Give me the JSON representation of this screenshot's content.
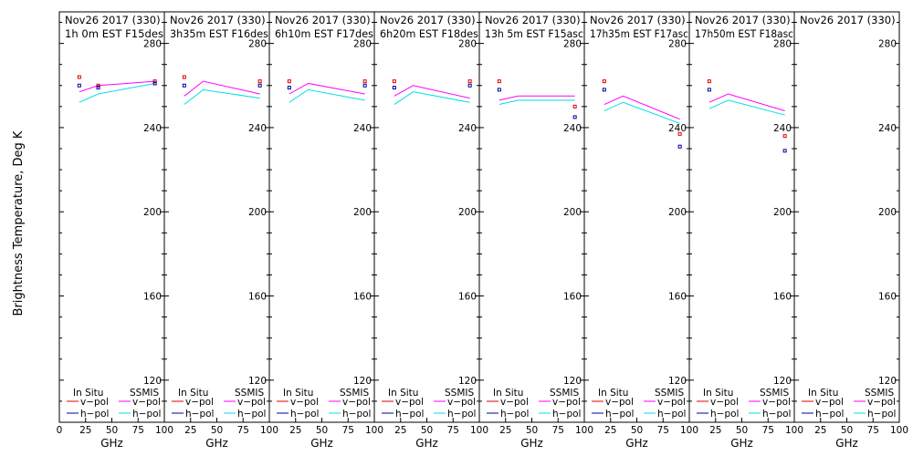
{
  "chart_data": {
    "type": "line",
    "ylabel": "Brightness Temperature, Deg K",
    "xlabel": "GHz",
    "ylim": [
      100,
      295
    ],
    "xlim": [
      0,
      100
    ],
    "y_ticks": [
      120,
      160,
      200,
      240,
      280
    ],
    "x_ticks": [
      0,
      25,
      50,
      75,
      100
    ],
    "x_tick_labels": [
      "0",
      "25",
      "50",
      "75",
      "100"
    ],
    "x_tick_labels_last_panel": [
      "0",
      "25",
      "50",
      "75",
      "100"
    ],
    "x_tick_labels_inner": [
      "25",
      "50",
      "75",
      "100"
    ],
    "legend": {
      "in_situ_heading": "In Situ",
      "ssmis_heading": "SSMIS",
      "vpol": "v−pol",
      "hpol": "h−pol"
    },
    "colors": {
      "insitu_v": "#e00000",
      "insitu_h": "#0000a0",
      "ssmis_v": "#ff00ff",
      "ssmis_h": "#00e0e0",
      "frame": "#000000"
    },
    "panels": [
      {
        "title_line1": "Nov26 2017 (330)",
        "title_line2": "1h 0m  EST F15des",
        "ssmis_v": [
          [
            19,
            257
          ],
          [
            37,
            260
          ],
          [
            91,
            262
          ]
        ],
        "ssmis_h": [
          [
            19,
            252
          ],
          [
            37,
            256
          ],
          [
            91,
            261
          ]
        ],
        "insitu_v": [
          [
            19,
            264
          ],
          [
            37,
            260
          ],
          [
            91,
            262
          ]
        ],
        "insitu_h": [
          [
            19,
            260
          ],
          [
            37,
            259
          ],
          [
            91,
            261
          ]
        ]
      },
      {
        "title_line1": "Nov26 2017 (330)",
        "title_line2": "3h35m  EST F16des",
        "ssmis_v": [
          [
            19,
            255
          ],
          [
            37,
            262
          ],
          [
            91,
            256
          ]
        ],
        "ssmis_h": [
          [
            19,
            251
          ],
          [
            37,
            258
          ],
          [
            91,
            254
          ]
        ],
        "insitu_v": [
          [
            19,
            264
          ],
          [
            91,
            262
          ]
        ],
        "insitu_h": [
          [
            19,
            260
          ],
          [
            91,
            260
          ]
        ]
      },
      {
        "title_line1": "Nov26 2017 (330)",
        "title_line2": "6h10m  EST F17des",
        "ssmis_v": [
          [
            19,
            256
          ],
          [
            37,
            261
          ],
          [
            91,
            256
          ]
        ],
        "ssmis_h": [
          [
            19,
            252
          ],
          [
            37,
            258
          ],
          [
            91,
            253
          ]
        ],
        "insitu_v": [
          [
            19,
            262
          ],
          [
            91,
            262
          ]
        ],
        "insitu_h": [
          [
            19,
            259
          ],
          [
            91,
            260
          ]
        ]
      },
      {
        "title_line1": "Nov26 2017 (330)",
        "title_line2": "6h20m  EST F18des",
        "ssmis_v": [
          [
            19,
            255
          ],
          [
            37,
            260
          ],
          [
            91,
            254
          ]
        ],
        "ssmis_h": [
          [
            19,
            251
          ],
          [
            37,
            257
          ],
          [
            91,
            252
          ]
        ],
        "insitu_v": [
          [
            19,
            262
          ],
          [
            91,
            262
          ]
        ],
        "insitu_h": [
          [
            19,
            259
          ],
          [
            91,
            260
          ]
        ]
      },
      {
        "title_line1": "Nov26 2017 (330)",
        "title_line2": "13h 5m  EST F15asc",
        "ssmis_v": [
          [
            19,
            253
          ],
          [
            37,
            255
          ],
          [
            91,
            255
          ]
        ],
        "ssmis_h": [
          [
            19,
            251
          ],
          [
            37,
            253
          ],
          [
            91,
            253
          ]
        ],
        "insitu_v": [
          [
            19,
            262
          ],
          [
            91,
            250
          ]
        ],
        "insitu_h": [
          [
            19,
            258
          ],
          [
            91,
            245
          ]
        ]
      },
      {
        "title_line1": "Nov26 2017 (330)",
        "title_line2": "17h35m  EST F17asc",
        "ssmis_v": [
          [
            19,
            251
          ],
          [
            37,
            255
          ],
          [
            91,
            244
          ]
        ],
        "ssmis_h": [
          [
            19,
            248
          ],
          [
            37,
            252
          ],
          [
            91,
            242
          ]
        ],
        "insitu_v": [
          [
            19,
            262
          ],
          [
            91,
            237
          ]
        ],
        "insitu_h": [
          [
            19,
            258
          ],
          [
            91,
            231
          ]
        ]
      },
      {
        "title_line1": "Nov26 2017 (330)",
        "title_line2": "17h50m  EST F18asc",
        "ssmis_v": [
          [
            19,
            252
          ],
          [
            37,
            256
          ],
          [
            91,
            248
          ]
        ],
        "ssmis_h": [
          [
            19,
            249
          ],
          [
            37,
            253
          ],
          [
            91,
            246
          ]
        ],
        "insitu_v": [
          [
            19,
            262
          ],
          [
            91,
            236
          ]
        ],
        "insitu_h": [
          [
            19,
            258
          ],
          [
            91,
            229
          ]
        ]
      },
      {
        "title_line1": "Nov26 2017 (330)",
        "title_line2": "",
        "ssmis_v": [],
        "ssmis_h": [],
        "insitu_v": [],
        "insitu_h": []
      }
    ]
  }
}
